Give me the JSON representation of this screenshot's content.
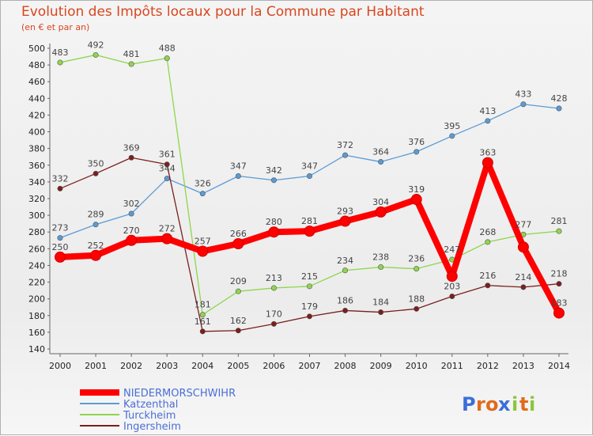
{
  "chart_data": {
    "type": "line",
    "title": "Evolution des Impôts locaux pour la Commune par Habitant",
    "subtitle": "(en € et par an)",
    "x": [
      "2000",
      "2001",
      "2002",
      "2003",
      "2004",
      "2005",
      "2006",
      "2007",
      "2008",
      "2009",
      "2010",
      "2011",
      "2012",
      "2013",
      "2014"
    ],
    "ylim": [
      140,
      500
    ],
    "yticks": [
      140,
      160,
      180,
      200,
      220,
      240,
      260,
      280,
      300,
      320,
      340,
      360,
      380,
      400,
      420,
      440,
      460,
      480,
      500
    ],
    "grid": false,
    "legend_position": "bottom-left",
    "series": [
      {
        "name": "NIEDERMORSCHWIHR",
        "color": "#ff0000",
        "values": [
          250,
          252,
          270,
          272,
          257,
          266,
          280,
          281,
          293,
          304,
          319,
          227,
          363,
          262,
          183
        ],
        "labels": [
          "250",
          "252",
          "270",
          "272",
          "257",
          "266",
          "280",
          "281",
          "293",
          "304",
          "319",
          "",
          "363",
          "",
          "183"
        ]
      },
      {
        "name": "Katzenthal",
        "color": "#5b9bd5",
        "values": [
          273,
          289,
          302,
          344,
          326,
          347,
          342,
          347,
          372,
          364,
          376,
          395,
          413,
          433,
          428
        ],
        "labels": [
          "273",
          "289",
          "302",
          "344",
          "326",
          "347",
          "342",
          "347",
          "372",
          "364",
          "376",
          "395",
          "413",
          "433",
          "428"
        ]
      },
      {
        "name": "Turckheim",
        "color": "#8fd64d",
        "values": [
          483,
          492,
          481,
          488,
          181,
          209,
          213,
          215,
          234,
          238,
          236,
          247,
          268,
          277,
          281
        ],
        "labels": [
          "483",
          "492",
          "481",
          "488",
          "181",
          "209",
          "213",
          "215",
          "234",
          "238",
          "236",
          "247",
          "268",
          "277",
          "281"
        ]
      },
      {
        "name": "Ingersheim",
        "color": "#7b1e1e",
        "values": [
          332,
          350,
          369,
          361,
          161,
          162,
          170,
          179,
          186,
          184,
          188,
          203,
          216,
          214,
          218
        ],
        "labels": [
          "332",
          "350",
          "369",
          "361",
          "161",
          "162",
          "170",
          "179",
          "186",
          "184",
          "188",
          "203",
          "216",
          "214",
          "218"
        ]
      }
    ]
  },
  "brand": {
    "text": "Proxiti",
    "letters": [
      "P",
      "r",
      "o",
      "x",
      "i",
      "t",
      "i"
    ],
    "colors": [
      "#3a6fd8",
      "#e06c1c",
      "#e06c1c",
      "#3a6fd8",
      "#8cc63f",
      "#e06c1c",
      "#8cc63f"
    ]
  }
}
